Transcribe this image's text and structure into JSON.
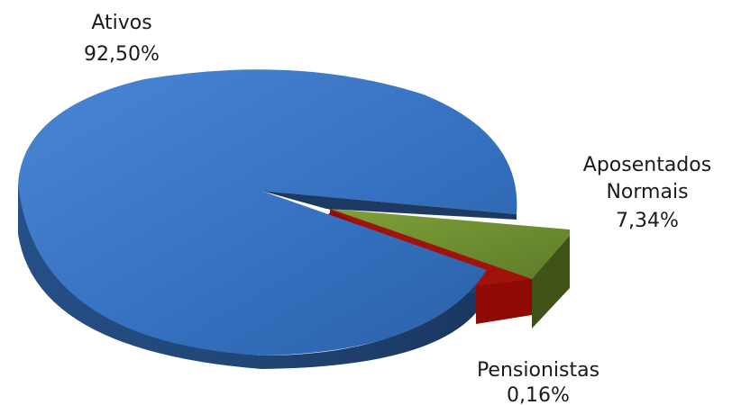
{
  "chart_data": {
    "type": "pie",
    "title": "",
    "style": "3d-exploded",
    "slices": [
      {
        "label": "Ativos",
        "value": 92.5,
        "value_label": "92,50%",
        "color": "#3470bf"
      },
      {
        "label": "Aposentados Normais",
        "label_lines": [
          "Aposentados",
          "Normais"
        ],
        "value": 7.34,
        "value_label": "7,34%",
        "color": "#6b8a2e"
      },
      {
        "label": "Pensionistas",
        "value": 0.16,
        "value_label": "0,16%",
        "color": "#8f0a06"
      }
    ]
  }
}
